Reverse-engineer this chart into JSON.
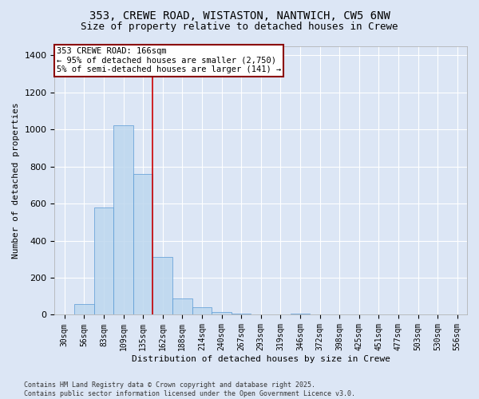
{
  "title1": "353, CREWE ROAD, WISTASTON, NANTWICH, CW5 6NW",
  "title2": "Size of property relative to detached houses in Crewe",
  "xlabel": "Distribution of detached houses by size in Crewe",
  "ylabel": "Number of detached properties",
  "categories": [
    "30sqm",
    "56sqm",
    "83sqm",
    "109sqm",
    "135sqm",
    "162sqm",
    "188sqm",
    "214sqm",
    "240sqm",
    "267sqm",
    "293sqm",
    "319sqm",
    "346sqm",
    "372sqm",
    "398sqm",
    "425sqm",
    "451sqm",
    "477sqm",
    "503sqm",
    "530sqm",
    "556sqm"
  ],
  "values": [
    0,
    60,
    580,
    1020,
    760,
    310,
    90,
    40,
    15,
    5,
    2,
    1,
    7,
    0,
    0,
    0,
    0,
    0,
    0,
    0,
    0
  ],
  "bar_color": "#bdd7ee",
  "bar_edge_color": "#5b9bd5",
  "bar_alpha": 0.85,
  "vline_index": 5,
  "vline_color": "#cc0000",
  "annotation_line1": "353 CREWE ROAD: 166sqm",
  "annotation_line2": "← 95% of detached houses are smaller (2,750)",
  "annotation_line3": "5% of semi-detached houses are larger (141) →",
  "ylim": [
    0,
    1450
  ],
  "background_color": "#dce6f5",
  "grid_color": "#ffffff",
  "footnote": "Contains HM Land Registry data © Crown copyright and database right 2025.\nContains public sector information licensed under the Open Government Licence v3.0.",
  "title_fontsize": 10,
  "subtitle_fontsize": 9,
  "axis_label_fontsize": 8,
  "tick_fontsize": 7,
  "annot_fontsize": 7.5
}
